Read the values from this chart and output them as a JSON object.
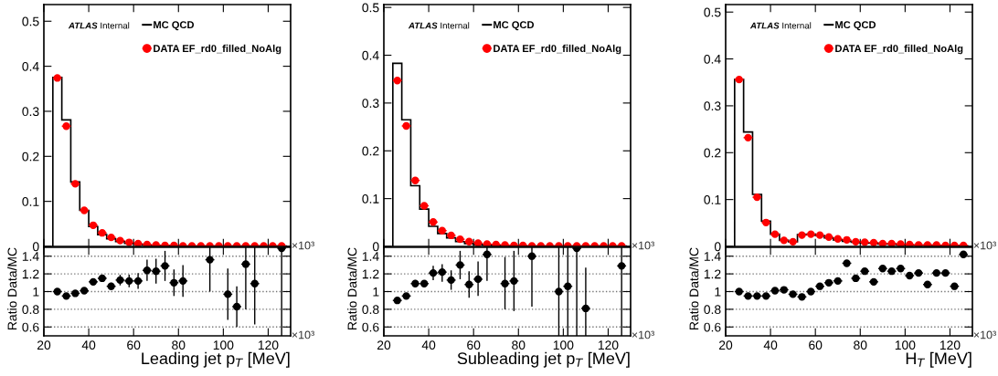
{
  "chart_data": [
    {
      "type": "histogram",
      "bins": [
        24,
        28,
        32,
        36,
        40,
        44,
        48,
        52,
        56,
        60,
        64,
        68,
        72,
        76,
        80,
        84,
        88,
        92,
        96,
        100,
        104,
        108,
        112,
        116,
        120,
        124,
        128
      ],
      "annotations": [
        "ATLAS",
        "Internal",
        "×10³"
      ],
      "xlim": [
        20,
        130
      ],
      "xticks": [
        20,
        40,
        60,
        80,
        100,
        120
      ],
      "ylim": [
        0,
        0.537
      ],
      "yticks": [
        0,
        0.1,
        0.2,
        0.3,
        0.4,
        0.5
      ],
      "tick_labels": "y",
      "legend": "top right",
      "series": [
        {
          "name": "MC QCD",
          "type": "histogram",
          "color": "#000000",
          "values": [
            0.375,
            0.281,
            0.143,
            0.08,
            0.044,
            0.026,
            0.017,
            0.011,
            0.007,
            0.005,
            0.003,
            0.002,
            0.002,
            0.001,
            0.001,
            0.001,
            0.001,
            0.001,
            0.001,
            0.001,
            0.001,
            0.001,
            0.001,
            0.001,
            0.001,
            0.001
          ]
        },
        {
          "name": "DATA EF_rd0_filled_NoAlg",
          "type": "scatter",
          "marker": "circle",
          "color": "#ff0000",
          "x": [
            26,
            30,
            34,
            38,
            42,
            46,
            50,
            54,
            58,
            62,
            66,
            70,
            74,
            78,
            82,
            86,
            90,
            94,
            98,
            102,
            106,
            110,
            114,
            118,
            122,
            126
          ],
          "values": [
            0.374,
            0.267,
            0.139,
            0.08,
            0.047,
            0.03,
            0.02,
            0.013,
            0.009,
            0.006,
            0.004,
            0.003,
            0.002,
            0.002,
            0.001,
            0.001,
            0.001,
            0.001,
            0.001,
            0.001,
            0.001,
            0.001,
            0.001,
            0.001,
            0.001,
            0.001
          ],
          "xerrors": [
            2,
            2,
            2,
            2,
            2,
            2,
            2,
            2,
            2,
            2,
            2,
            2,
            2,
            2,
            2,
            2,
            2,
            2,
            2,
            2,
            2,
            2,
            2,
            2,
            2,
            2
          ]
        }
      ]
    },
    {
      "type": "histogram",
      "bins": [
        24,
        28,
        32,
        36,
        40,
        44,
        48,
        52,
        56,
        60,
        64,
        68,
        72,
        76,
        80,
        84,
        88,
        92,
        96,
        100,
        104,
        108,
        112,
        116,
        120,
        124,
        128
      ],
      "annotations": [
        "ATLAS",
        "Internal",
        "×10³"
      ],
      "xlim": [
        20,
        130
      ],
      "xticks": [
        20,
        40,
        60,
        80,
        100,
        120
      ],
      "ylim": [
        0,
        0.506
      ],
      "yticks": [
        0,
        0.1,
        0.2,
        0.3,
        0.4,
        0.5
      ],
      "tick_labels": "y",
      "legend": "top right",
      "series": [
        {
          "name": "MC QCD",
          "type": "histogram",
          "color": "#000000",
          "values": [
            0.383,
            0.265,
            0.127,
            0.078,
            0.042,
            0.027,
            0.018,
            0.01,
            0.006,
            0.004,
            0.003,
            0.002,
            0.001,
            0.001,
            0.001,
            0.001,
            0.001,
            0.001,
            0.001,
            0.001,
            0.001,
            0.001,
            0.001,
            0.001,
            0.001,
            0.001
          ]
        },
        {
          "name": "DATA EF_rd0_filled_NoAlg",
          "type": "scatter",
          "marker": "circle",
          "color": "#ff0000",
          "x": [
            26,
            30,
            34,
            38,
            42,
            46,
            50,
            54,
            58,
            62,
            66,
            70,
            74,
            78,
            82,
            86,
            90,
            94,
            98,
            102,
            106,
            110,
            114,
            118,
            122,
            126
          ],
          "values": [
            0.347,
            0.252,
            0.138,
            0.085,
            0.051,
            0.033,
            0.023,
            0.015,
            0.01,
            0.007,
            0.005,
            0.004,
            0.003,
            0.002,
            0.002,
            0.001,
            0.001,
            0.001,
            0.001,
            0.001,
            0.001,
            0.001,
            0.001,
            0.001,
            0.001,
            0.001
          ],
          "xerrors": [
            2,
            2,
            2,
            2,
            2,
            2,
            2,
            2,
            2,
            2,
            2,
            2,
            2,
            2,
            2,
            2,
            2,
            2,
            2,
            2,
            2,
            2,
            2,
            2,
            2,
            2
          ]
        }
      ]
    },
    {
      "type": "histogram",
      "bins": [
        24,
        28,
        32,
        36,
        40,
        44,
        48,
        52,
        56,
        60,
        64,
        68,
        72,
        76,
        80,
        84,
        88,
        92,
        96,
        100,
        104,
        108,
        112,
        116,
        120,
        124,
        128
      ],
      "annotations": [
        "ATLAS",
        "Internal",
        "×10³"
      ],
      "xlim": [
        20,
        130
      ],
      "xticks": [
        20,
        40,
        60,
        80,
        100,
        120
      ],
      "ylim": [
        0,
        0.516
      ],
      "yticks": [
        0,
        0.1,
        0.2,
        0.3,
        0.4,
        0.5
      ],
      "tick_labels": "y",
      "legend": "top right",
      "series": [
        {
          "name": "MC QCD",
          "type": "histogram",
          "color": "#000000",
          "values": [
            0.356,
            0.244,
            0.111,
            0.054,
            0.026,
            0.013,
            0.01,
            0.025,
            0.026,
            0.023,
            0.018,
            0.014,
            0.011,
            0.009,
            0.007,
            0.007,
            0.005,
            0.005,
            0.004,
            0.003,
            0.003,
            0.003,
            0.002,
            0.002,
            0.002,
            0.001
          ]
        },
        {
          "name": "DATA EF_rd0_filled_NoAlg",
          "type": "scatter",
          "marker": "circle",
          "color": "#ff0000",
          "x": [
            26,
            30,
            34,
            38,
            42,
            46,
            50,
            54,
            58,
            62,
            66,
            70,
            74,
            78,
            82,
            86,
            90,
            94,
            98,
            102,
            106,
            110,
            114,
            118,
            122,
            126
          ],
          "values": [
            0.356,
            0.232,
            0.105,
            0.051,
            0.026,
            0.013,
            0.01,
            0.024,
            0.026,
            0.024,
            0.02,
            0.016,
            0.014,
            0.01,
            0.009,
            0.008,
            0.006,
            0.006,
            0.005,
            0.004,
            0.003,
            0.003,
            0.003,
            0.002,
            0.002,
            0.002
          ],
          "xerrors": [
            2,
            2,
            2,
            2,
            2,
            2,
            2,
            2,
            2,
            2,
            2,
            2,
            2,
            2,
            2,
            2,
            2,
            2,
            2,
            2,
            2,
            2,
            2,
            2,
            2,
            2
          ]
        }
      ]
    },
    {
      "type": "scatter",
      "marker": "circle",
      "color": "#000000",
      "xlabel": "Leading jet p$_{T}$ [MeV]",
      "ylabel": "Ratio Data/MC",
      "annotations": [
        "×10³"
      ],
      "xlim": [
        20,
        130
      ],
      "xticks": [
        20,
        40,
        60,
        80,
        100,
        120
      ],
      "ylim": [
        0.5,
        1.5
      ],
      "yticks": [
        0.6,
        0.8,
        1,
        1.2,
        1.4
      ],
      "grid": "y",
      "x": [
        26,
        30,
        34,
        38,
        42,
        46,
        50,
        54,
        58,
        62,
        66,
        70,
        74,
        78,
        82,
        94,
        102,
        106,
        110,
        114,
        126
      ],
      "values": [
        1.0,
        0.95,
        0.98,
        1.01,
        1.11,
        1.15,
        1.06,
        1.13,
        1.12,
        1.12,
        1.24,
        1.23,
        1.29,
        1.1,
        1.12,
        1.36,
        0.97,
        0.83,
        1.31,
        1.09,
        1.49
      ],
      "errors": [
        0.01,
        0.01,
        0.01,
        0.01,
        0.02,
        0.03,
        0.04,
        0.06,
        0.07,
        0.09,
        0.12,
        0.14,
        0.17,
        0.15,
        0.18,
        [
          1.0,
          1.5
        ],
        [
          0.68,
          1.26
        ],
        [
          0.6,
          1.06
        ],
        [
          0.8,
          1.5
        ],
        [
          0.63,
          1.5
        ],
        [
          0.5,
          1.5
        ]
      ],
      "xerrors": [
        2,
        2,
        2,
        2,
        2,
        2,
        2,
        2,
        2,
        2,
        2,
        2,
        2,
        2,
        2,
        2,
        2,
        2,
        2,
        2,
        2
      ]
    },
    {
      "type": "scatter",
      "marker": "circle",
      "color": "#000000",
      "xlabel": "Subleading jet p$_{T}$ [MeV]",
      "ylabel": "Ratio Data/MC",
      "annotations": [
        "×10³"
      ],
      "xlim": [
        20,
        130
      ],
      "xticks": [
        20,
        40,
        60,
        80,
        100,
        120
      ],
      "ylim": [
        0.5,
        1.5
      ],
      "yticks": [
        0.6,
        0.8,
        1,
        1.2,
        1.4
      ],
      "grid": "y",
      "x": [
        26,
        30,
        34,
        38,
        42,
        46,
        50,
        54,
        58,
        62,
        66,
        74,
        78,
        86,
        98,
        102,
        106,
        110,
        126
      ],
      "values": [
        0.9,
        0.95,
        1.09,
        1.09,
        1.21,
        1.22,
        1.13,
        1.3,
        1.08,
        1.14,
        1.42,
        1.09,
        1.12,
        1.4,
        1.0,
        1.06,
        1.49,
        0.81,
        1.29
      ],
      "errors": [
        0.01,
        0.01,
        0.04,
        0.04,
        [
          1.13,
          1.29
        ],
        [
          1.11,
          1.31
        ],
        [
          1.02,
          1.24
        ],
        [
          1.14,
          1.46
        ],
        [
          0.93,
          1.23
        ],
        [
          0.95,
          1.34
        ],
        [
          1.12,
          1.5
        ],
        [
          0.8,
          1.39
        ],
        [
          0.78,
          1.46
        ],
        [
          0.83,
          1.5
        ],
        [
          0.5,
          1.5
        ],
        [
          0.5,
          1.5
        ],
        [
          0.5,
          1.5
        ],
        [
          0.5,
          1.27
        ],
        [
          0.5,
          1.5
        ]
      ],
      "xerrors": [
        2,
        2,
        2,
        2,
        2,
        2,
        2,
        2,
        2,
        2,
        2,
        2,
        2,
        2,
        2,
        2,
        2,
        2,
        2
      ]
    },
    {
      "type": "scatter",
      "marker": "circle",
      "color": "#000000",
      "xlabel": "H$_{T}$ [MeV]",
      "ylabel": "Ratio Data/MC",
      "annotations": [
        "×10³"
      ],
      "xlim": [
        20,
        130
      ],
      "xticks": [
        20,
        40,
        60,
        80,
        100,
        120
      ],
      "ylim": [
        0.5,
        1.5
      ],
      "yticks": [
        0.6,
        0.8,
        1,
        1.2,
        1.4
      ],
      "grid": "y",
      "x": [
        26,
        30,
        34,
        38,
        42,
        46,
        50,
        54,
        58,
        62,
        66,
        70,
        74,
        78,
        82,
        86,
        90,
        94,
        98,
        102,
        106,
        110,
        114,
        118,
        122,
        126
      ],
      "values": [
        1.0,
        0.95,
        0.95,
        0.95,
        1.01,
        1.02,
        0.97,
        0.94,
        1.0,
        1.06,
        1.1,
        1.12,
        1.32,
        1.15,
        1.23,
        1.11,
        1.26,
        1.23,
        1.26,
        1.18,
        1.21,
        1.08,
        1.21,
        1.21,
        1.06,
        1.42
      ],
      "errors": [
        0.01,
        0.01,
        0.01,
        0.01,
        0.01,
        0.01,
        0.01,
        0.01,
        0.01,
        0.01,
        0.01,
        0.01,
        0.01,
        0.01,
        0.01,
        0.01,
        0.01,
        0.01,
        0.01,
        0.01,
        0.01,
        0.01,
        0.02,
        0.03,
        0.03,
        0.04
      ],
      "xerrors": [
        2,
        2,
        2,
        2,
        2,
        2,
        2,
        2,
        2,
        2,
        2,
        2,
        2,
        2,
        2,
        2,
        2,
        2,
        2,
        2,
        2,
        2,
        2,
        2,
        2,
        2
      ]
    }
  ]
}
